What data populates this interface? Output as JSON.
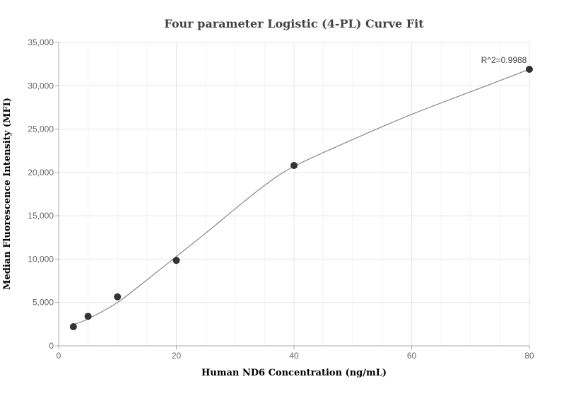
{
  "chart_data": {
    "type": "scatter",
    "title": "Four parameter Logistic (4-PL) Curve Fit",
    "xlabel": "Human ND6 Concentration (ng/mL)",
    "ylabel": "Median Fluorescence Intensity (MFI)",
    "xlim": [
      0,
      80
    ],
    "ylim": [
      0,
      35000
    ],
    "x_ticks": [
      0,
      20,
      40,
      60,
      80
    ],
    "x_tick_labels": [
      "0",
      "20",
      "40",
      "60",
      "80"
    ],
    "y_ticks": [
      0,
      5000,
      10000,
      15000,
      20000,
      25000,
      30000,
      35000
    ],
    "y_tick_labels": [
      "0",
      "5,000",
      "10,000",
      "15,000",
      "20,000",
      "25,000",
      "30,000",
      "35,000"
    ],
    "grid": true,
    "series": [
      {
        "points": [
          {
            "x": 2.5,
            "y": 2200
          },
          {
            "x": 5,
            "y": 3400
          },
          {
            "x": 10,
            "y": 5650
          },
          {
            "x": 20,
            "y": 9850
          },
          {
            "x": 40,
            "y": 20800
          },
          {
            "x": 80,
            "y": 31900
          }
        ],
        "color": "#333333"
      }
    ],
    "fit_curve": {
      "color": "#888888",
      "points": [
        {
          "x": 2.5,
          "y": 2450
        },
        {
          "x": 5,
          "y": 3100
        },
        {
          "x": 10,
          "y": 5000
        },
        {
          "x": 15,
          "y": 7600
        },
        {
          "x": 20,
          "y": 10300
        },
        {
          "x": 25,
          "y": 13000
        },
        {
          "x": 30,
          "y": 15800
        },
        {
          "x": 35,
          "y": 18500
        },
        {
          "x": 40,
          "y": 20700
        },
        {
          "x": 50,
          "y": 23800
        },
        {
          "x": 60,
          "y": 26700
        },
        {
          "x": 70,
          "y": 29300
        },
        {
          "x": 80,
          "y": 31900
        }
      ]
    },
    "annotation": {
      "text": "R^2=0.9988",
      "x": 80,
      "y": 31900
    }
  }
}
